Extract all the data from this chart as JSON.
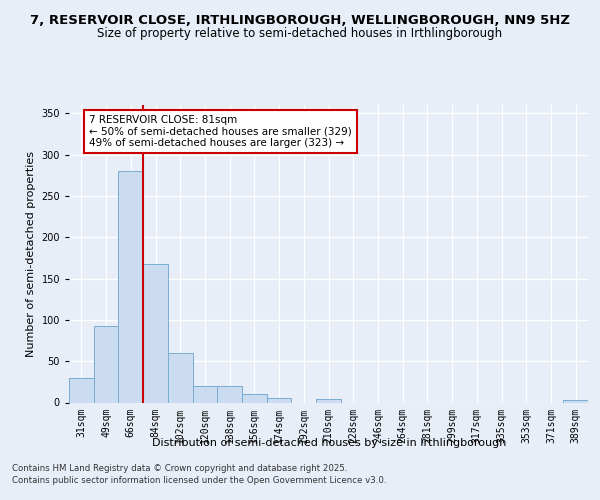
{
  "title_line1": "7, RESERVOIR CLOSE, IRTHLINGBOROUGH, WELLINGBOROUGH, NN9 5HZ",
  "title_line2": "Size of property relative to semi-detached houses in Irthlingborough",
  "xlabel": "Distribution of semi-detached houses by size in Irthlingborough",
  "ylabel": "Number of semi-detached properties",
  "categories": [
    "31sqm",
    "49sqm",
    "66sqm",
    "84sqm",
    "102sqm",
    "120sqm",
    "138sqm",
    "156sqm",
    "174sqm",
    "192sqm",
    "210sqm",
    "228sqm",
    "246sqm",
    "264sqm",
    "281sqm",
    "299sqm",
    "317sqm",
    "335sqm",
    "353sqm",
    "371sqm",
    "389sqm"
  ],
  "values": [
    30,
    93,
    280,
    168,
    60,
    20,
    20,
    10,
    5,
    0,
    4,
    0,
    0,
    0,
    0,
    0,
    0,
    0,
    0,
    0,
    3
  ],
  "bar_color": "#ccdcf0",
  "bar_edge_color": "#7aadd4",
  "vline_color": "#cc0000",
  "vline_x": 2.5,
  "annotation_title": "7 RESERVOIR CLOSE: 81sqm",
  "annotation_line1": "← 50% of semi-detached houses are smaller (329)",
  "annotation_line2": "49% of semi-detached houses are larger (323) →",
  "annotation_box_color": "#ffffff",
  "annotation_box_edge": "#cc0000",
  "ylim": [
    0,
    360
  ],
  "yticks": [
    0,
    50,
    100,
    150,
    200,
    250,
    300,
    350
  ],
  "background_color": "#e8eef8",
  "grid_color": "#ffffff",
  "footer_line1": "Contains HM Land Registry data © Crown copyright and database right 2025.",
  "footer_line2": "Contains public sector information licensed under the Open Government Licence v3.0."
}
